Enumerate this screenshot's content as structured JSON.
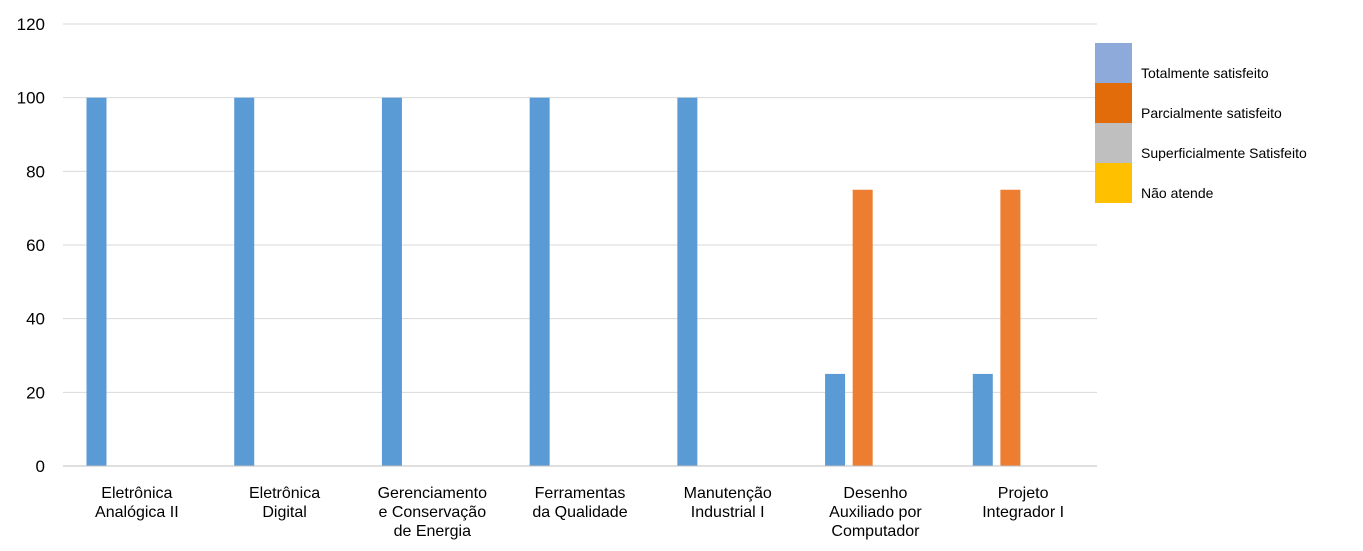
{
  "chart_data": {
    "type": "bar",
    "title": "",
    "xlabel": "",
    "ylabel": "",
    "ylim": [
      0,
      120
    ],
    "yticks": [
      0,
      20,
      40,
      60,
      80,
      100,
      120
    ],
    "grid": true,
    "legend_position": "right",
    "categories": [
      [
        "Eletrônica",
        "Analógica II"
      ],
      [
        "Eletrônica",
        "Digital"
      ],
      [
        "Gerenciamento",
        "e Conservação",
        "de Energia"
      ],
      [
        "Ferramentas",
        "da Qualidade"
      ],
      [
        "Manutenção",
        "Industrial I"
      ],
      [
        "Desenho",
        "Auxiliado por",
        "Computador"
      ],
      [
        "Projeto",
        "Integrador I"
      ]
    ],
    "series": [
      {
        "name": "Totalmente satisfeito",
        "color": "#5b9bd5",
        "values": [
          100,
          100,
          100,
          100,
          100,
          25,
          25
        ]
      },
      {
        "name": "Parcialmente satisfeito",
        "color": "#ed7d31",
        "values": [
          0,
          0,
          0,
          0,
          0,
          75,
          75
        ]
      },
      {
        "name": "Superficialmente Satisfeito",
        "color": "#a5a5a5",
        "values": [
          0,
          0,
          0,
          0,
          0,
          0,
          0
        ]
      },
      {
        "name": "Não atende",
        "color": "#ffc000",
        "values": [
          0,
          0,
          0,
          0,
          0,
          0,
          0
        ]
      }
    ],
    "legend_colors": [
      "#8eaadb",
      "#e36c0a",
      "#bfbfbf",
      "#ffc000"
    ]
  }
}
